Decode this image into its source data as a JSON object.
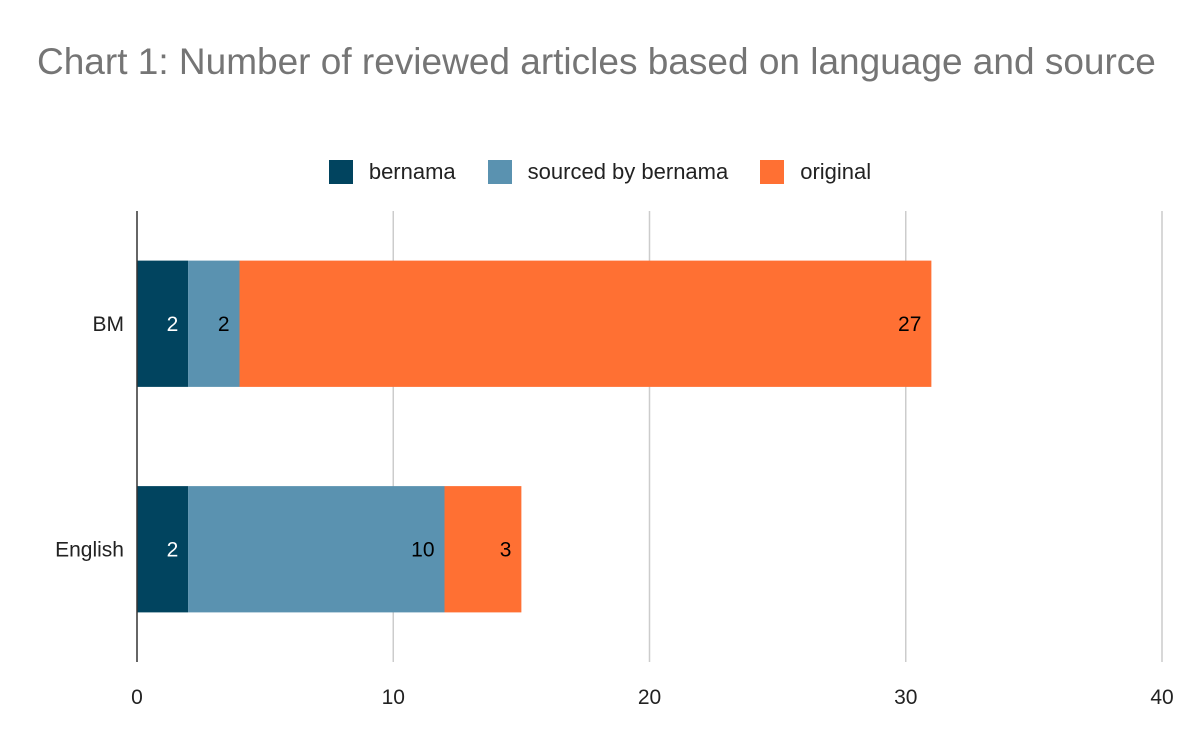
{
  "chart_data": {
    "type": "bar",
    "orientation": "horizontal",
    "stacked": true,
    "title": "Chart 1: Number of reviewed articles based on language and source",
    "categories": [
      "BM",
      "English"
    ],
    "series": [
      {
        "name": "bernama",
        "values": [
          2,
          2
        ],
        "color": "#01445f"
      },
      {
        "name": "sourced by bernama",
        "values": [
          2,
          10
        ],
        "color": "#5a92b0"
      },
      {
        "name": "original",
        "values": [
          27,
          3
        ],
        "color": "#ff7033"
      }
    ],
    "data_label_colors": [
      "#ffffff",
      "#000000",
      "#000000"
    ],
    "xlim": [
      0,
      40
    ],
    "xticks": [
      0,
      10,
      20,
      30,
      40
    ],
    "grid": true,
    "legend_position": "top"
  }
}
